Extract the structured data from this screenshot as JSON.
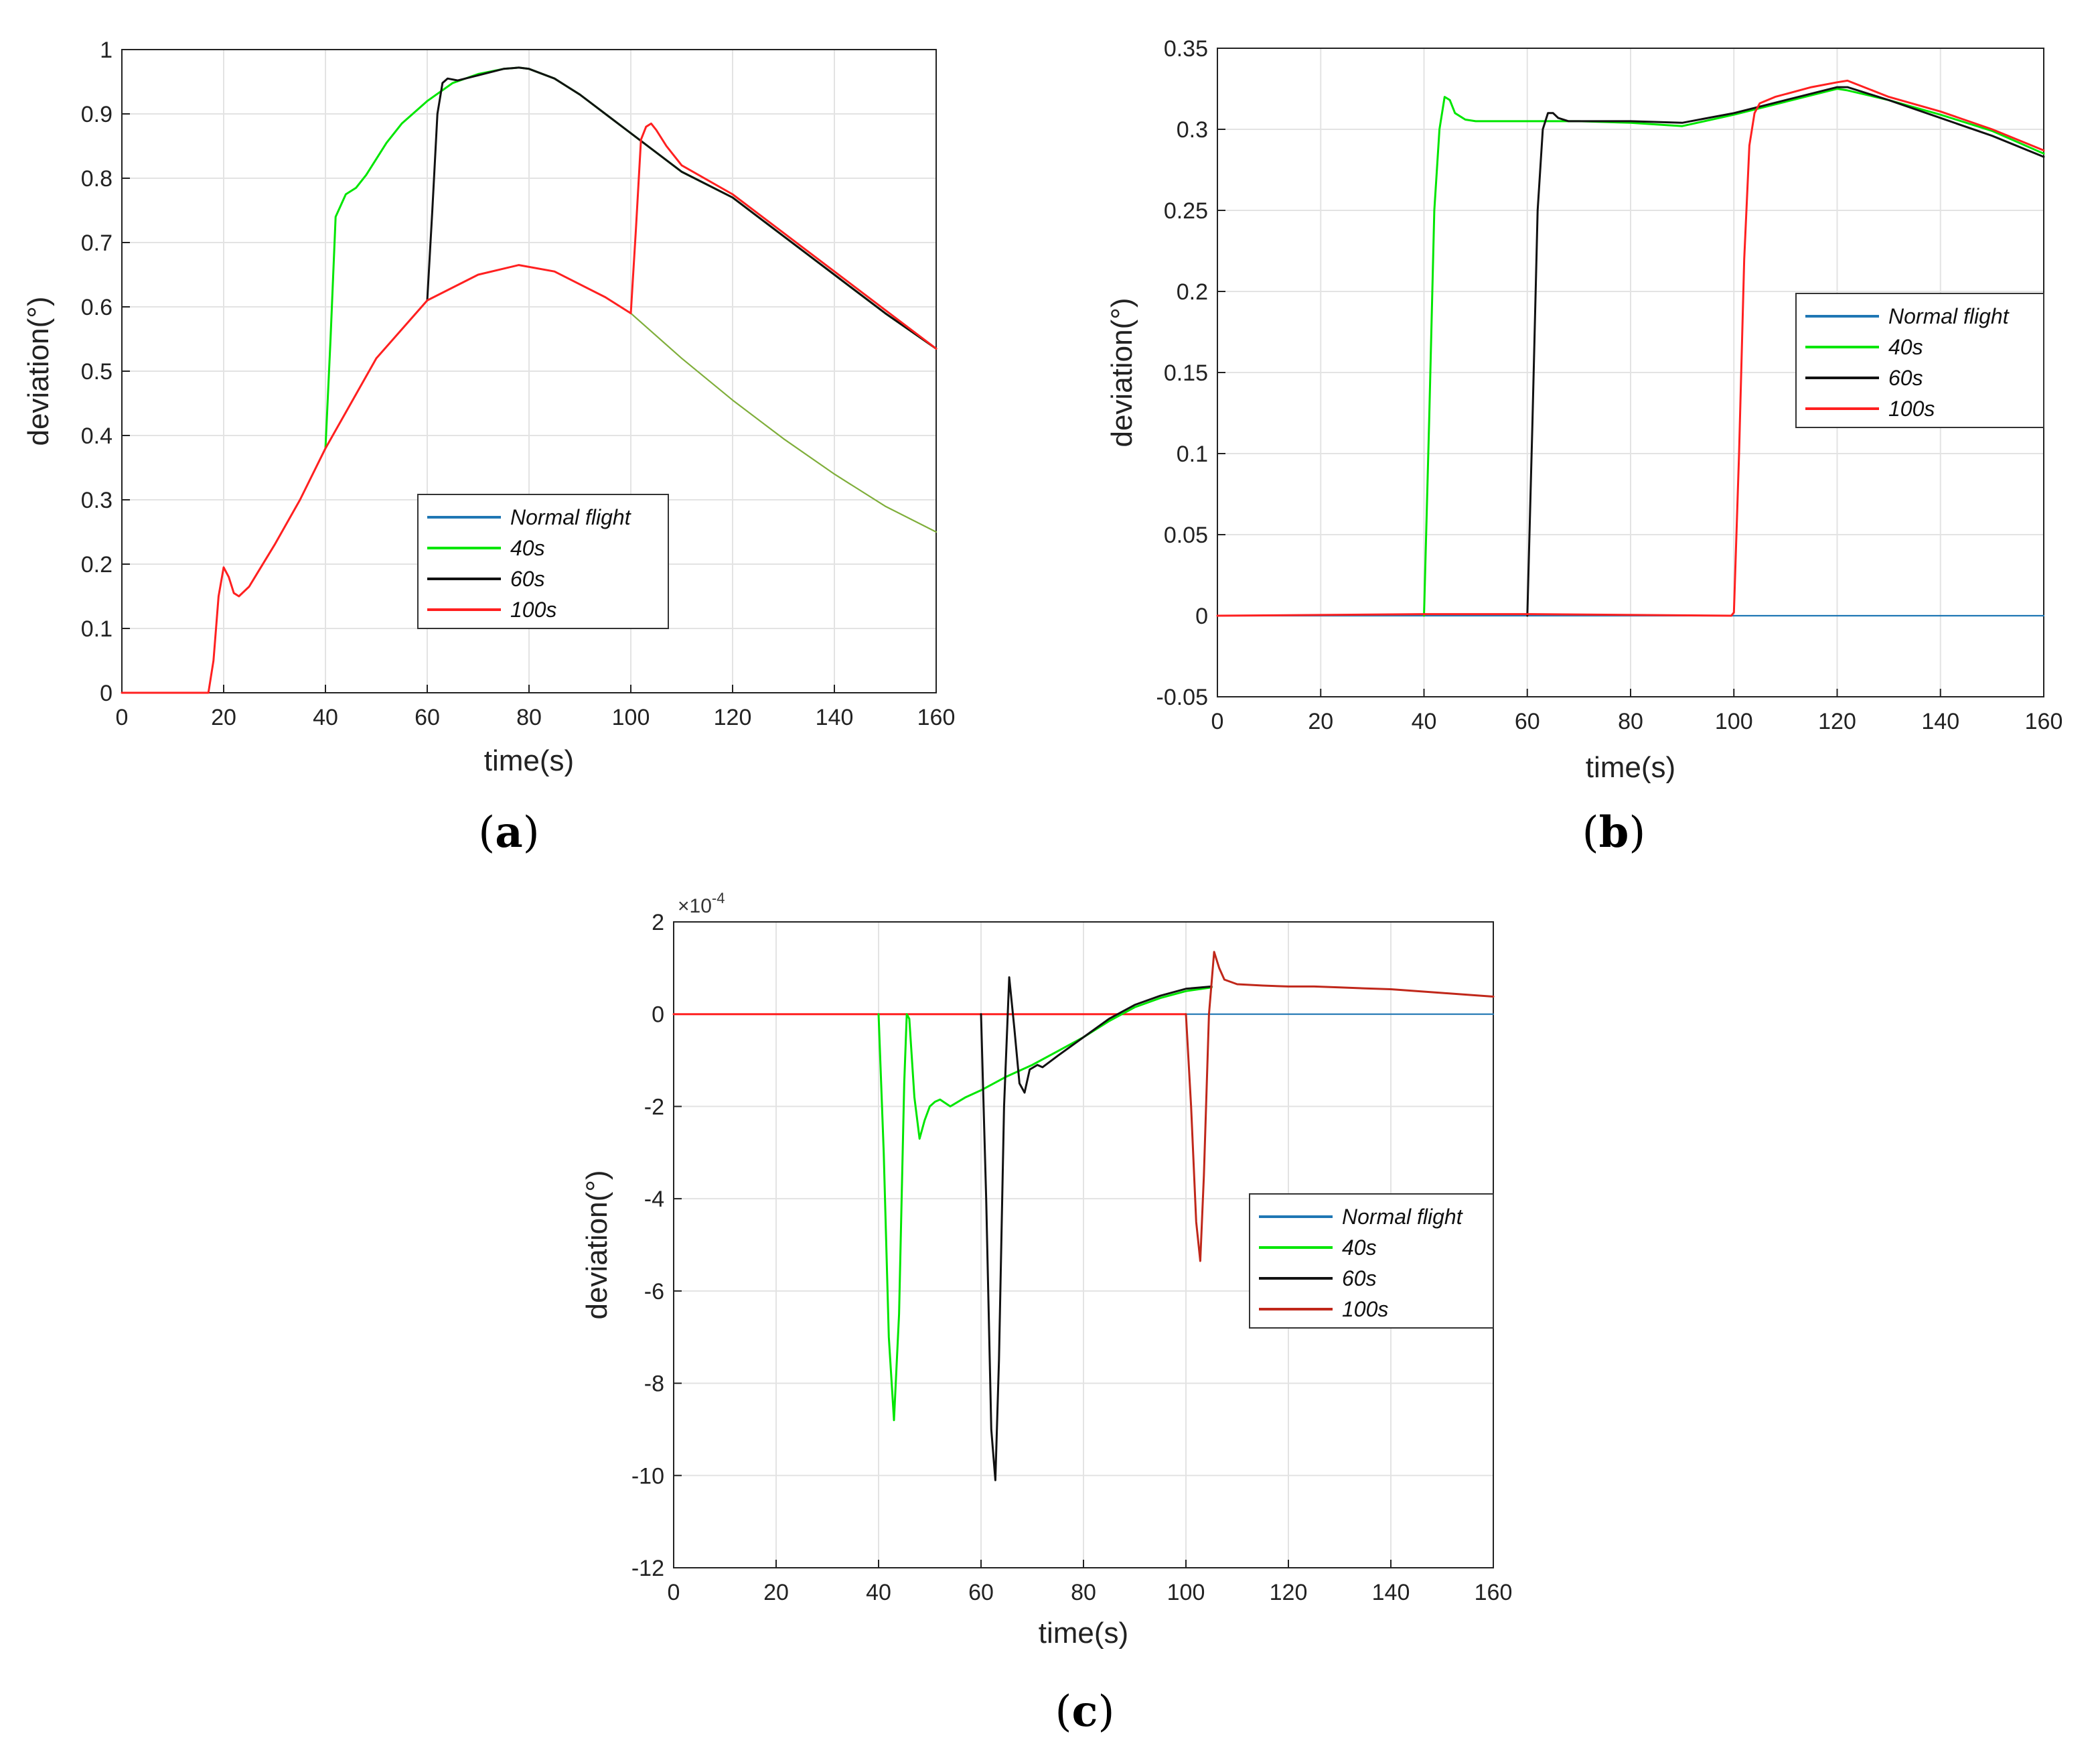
{
  "colors": {
    "normal": "#1f77b4",
    "green": "#00e600",
    "black": "#111111",
    "red": "#ff2020",
    "darkred": "#c0271a",
    "olive": "#7fae3a",
    "grid": "#e3e3e3",
    "axis": "#222222"
  },
  "chart_data": [
    {
      "type": "line",
      "panel": "a",
      "caption": {
        "open": "(",
        "letter": "a",
        "close": ")"
      },
      "xlabel": "time(s)",
      "ylabel": "deviation(°)",
      "xlim": [
        0,
        160
      ],
      "ylim": [
        0,
        1
      ],
      "xticks": [
        0,
        20,
        40,
        60,
        80,
        100,
        120,
        140,
        160
      ],
      "yticks": [
        0,
        0.1,
        0.2,
        0.3,
        0.4,
        0.5,
        0.6,
        0.7,
        0.8,
        0.9,
        1
      ],
      "ytick_labels": [
        "0",
        "0.1",
        "0.2",
        "0.3",
        "0.4",
        "0.5",
        "0.6",
        "0.7",
        "0.8",
        "0.9",
        "1"
      ],
      "exponent_label": "",
      "legend": {
        "position": "center",
        "entries": [
          {
            "label": "Normal flight",
            "color": "normal"
          },
          {
            "label": "40s",
            "color": "green"
          },
          {
            "label": "60s",
            "color": "black"
          },
          {
            "label": "100s",
            "color": "red"
          }
        ]
      },
      "series": [
        {
          "name": "Normal flight (after 100s)",
          "color": "olive",
          "width": 2.2,
          "x": [
            100,
            110,
            120,
            130,
            140,
            150,
            160
          ],
          "y": [
            0.59,
            0.52,
            0.455,
            0.395,
            0.34,
            0.29,
            0.25
          ]
        },
        {
          "name": "40s",
          "color": "green",
          "width": 3,
          "x": [
            40,
            41,
            42,
            44,
            46,
            48,
            50,
            52,
            55,
            60,
            65,
            70,
            75,
            78,
            80,
            85,
            90,
            95,
            100,
            110,
            120,
            130,
            140,
            150,
            160
          ],
          "y": [
            0.38,
            0.55,
            0.74,
            0.775,
            0.785,
            0.805,
            0.83,
            0.855,
            0.885,
            0.92,
            0.948,
            0.962,
            0.97,
            0.972,
            0.97,
            0.955,
            0.93,
            0.9,
            0.87,
            0.81,
            0.77,
            0.71,
            0.65,
            0.59,
            0.535
          ]
        },
        {
          "name": "60s",
          "color": "black",
          "width": 3,
          "x": [
            60,
            61,
            62,
            63,
            64,
            66,
            70,
            75,
            78,
            80,
            85,
            90,
            95,
            100,
            105,
            110,
            120,
            130,
            140,
            150,
            160
          ],
          "y": [
            0.61,
            0.75,
            0.9,
            0.948,
            0.955,
            0.952,
            0.96,
            0.97,
            0.972,
            0.97,
            0.955,
            0.93,
            0.9,
            0.87,
            0.84,
            0.81,
            0.77,
            0.71,
            0.65,
            0.59,
            0.535
          ]
        },
        {
          "name": "100s",
          "color": "red",
          "width": 3,
          "x": [
            0,
            17,
            18,
            19,
            20,
            21,
            22,
            23,
            25,
            30,
            35,
            40,
            50,
            60,
            70,
            78,
            85,
            95,
            100,
            101,
            102,
            103,
            104,
            105,
            107,
            110,
            120,
            130,
            140,
            150,
            160
          ],
          "y": [
            0,
            0,
            0.05,
            0.15,
            0.195,
            0.18,
            0.155,
            0.15,
            0.165,
            0.23,
            0.3,
            0.38,
            0.52,
            0.61,
            0.65,
            0.665,
            0.655,
            0.615,
            0.59,
            0.72,
            0.86,
            0.88,
            0.885,
            0.875,
            0.85,
            0.82,
            0.775,
            0.715,
            0.655,
            0.595,
            0.535
          ]
        }
      ]
    },
    {
      "type": "line",
      "panel": "b",
      "caption": {
        "open": "(",
        "letter": "b",
        "close": ")"
      },
      "xlabel": "time(s)",
      "ylabel": "deviation(°)",
      "xlim": [
        0,
        160
      ],
      "ylim": [
        -0.05,
        0.35
      ],
      "xticks": [
        0,
        20,
        40,
        60,
        80,
        100,
        120,
        140,
        160
      ],
      "yticks": [
        -0.05,
        0,
        0.05,
        0.1,
        0.15,
        0.2,
        0.25,
        0.3,
        0.35
      ],
      "ytick_labels": [
        "-0.05",
        "0",
        "0.05",
        "0.1",
        "0.15",
        "0.2",
        "0.25",
        "0.3",
        "0.35"
      ],
      "exponent_label": "",
      "legend": {
        "position": "center-right",
        "entries": [
          {
            "label": "Normal flight",
            "color": "normal"
          },
          {
            "label": "40s",
            "color": "green"
          },
          {
            "label": "60s",
            "color": "black"
          },
          {
            "label": "100s",
            "color": "red"
          }
        ]
      },
      "series": [
        {
          "name": "Normal flight",
          "color": "normal",
          "width": 2.2,
          "x": [
            0,
            160
          ],
          "y": [
            0,
            0
          ]
        },
        {
          "name": "40s",
          "color": "green",
          "width": 3,
          "x": [
            40,
            41,
            42,
            43,
            44,
            45,
            46,
            48,
            50,
            60,
            70,
            80,
            90,
            100,
            110,
            120,
            122,
            130,
            140,
            150,
            160
          ],
          "y": [
            0,
            0.12,
            0.25,
            0.3,
            0.32,
            0.318,
            0.31,
            0.306,
            0.305,
            0.305,
            0.305,
            0.304,
            0.302,
            0.309,
            0.317,
            0.325,
            0.324,
            0.318,
            0.309,
            0.299,
            0.285
          ]
        },
        {
          "name": "60s",
          "color": "black",
          "width": 3,
          "x": [
            60,
            61,
            62,
            63,
            64,
            65,
            66,
            68,
            70,
            80,
            90,
            100,
            110,
            120,
            122,
            130,
            140,
            150,
            160
          ],
          "y": [
            0,
            0.12,
            0.25,
            0.3,
            0.31,
            0.31,
            0.307,
            0.305,
            0.305,
            0.305,
            0.304,
            0.31,
            0.318,
            0.326,
            0.326,
            0.318,
            0.307,
            0.296,
            0.283
          ]
        },
        {
          "name": "100s",
          "color": "red",
          "width": 3,
          "x": [
            0,
            40,
            60,
            99.5,
            100,
            101,
            102,
            103,
            104,
            105,
            108,
            115,
            120,
            122,
            130,
            140,
            150,
            160
          ],
          "y": [
            0,
            0.001,
            0.001,
            0,
            0.002,
            0.1,
            0.22,
            0.29,
            0.31,
            0.316,
            0.32,
            0.326,
            0.329,
            0.33,
            0.32,
            0.311,
            0.3,
            0.287
          ]
        }
      ]
    },
    {
      "type": "line",
      "panel": "c",
      "caption": {
        "open": "(",
        "letter": "c",
        "close": ")"
      },
      "xlabel": "time(s)",
      "ylabel": "deviation(°)",
      "xlim": [
        0,
        160
      ],
      "ylim": [
        -12,
        2
      ],
      "xticks": [
        0,
        20,
        40,
        60,
        80,
        100,
        120,
        140,
        160
      ],
      "yticks": [
        -12,
        -10,
        -8,
        -6,
        -4,
        -2,
        0,
        2
      ],
      "ytick_labels": [
        "-12",
        "-10",
        "-8",
        "-6",
        "-4",
        "-2",
        "0",
        "2"
      ],
      "exponent_label": "×10",
      "exponent_power": "-4",
      "legend": {
        "position": "center-right",
        "entries": [
          {
            "label": "Normal flight",
            "color": "normal"
          },
          {
            "label": "40s",
            "color": "green"
          },
          {
            "label": "60s",
            "color": "black"
          },
          {
            "label": "100s",
            "color": "darkred"
          }
        ]
      },
      "series": [
        {
          "name": "Normal flight",
          "color": "normal",
          "width": 2.2,
          "x": [
            0,
            160
          ],
          "y": [
            0,
            0
          ]
        },
        {
          "name": "100s (before 100s)",
          "color": "red",
          "width": 3,
          "x": [
            0,
            100
          ],
          "y": [
            0,
            0
          ]
        },
        {
          "name": "40s",
          "color": "green",
          "width": 3,
          "x": [
            40,
            41,
            42,
            43,
            44,
            45,
            45.5,
            46,
            47,
            48,
            49,
            50,
            51,
            52,
            54,
            57,
            60,
            65,
            70,
            75,
            80,
            85,
            90,
            95,
            100,
            105
          ],
          "y": [
            0,
            -3,
            -7,
            -8.8,
            -6.5,
            -1.5,
            0,
            -0.1,
            -1.8,
            -2.7,
            -2.3,
            -2.0,
            -1.9,
            -1.85,
            -2.0,
            -1.8,
            -1.65,
            -1.35,
            -1.1,
            -0.8,
            -0.5,
            -0.15,
            0.15,
            0.35,
            0.5,
            0.58
          ]
        },
        {
          "name": "60s",
          "color": "black",
          "width": 3,
          "x": [
            60,
            61,
            62,
            62.8,
            63.5,
            64.5,
            65.5,
            66.5,
            67.5,
            68.5,
            69.5,
            71,
            72,
            75,
            80,
            85,
            90,
            95,
            100,
            105
          ],
          "y": [
            0,
            -4,
            -9,
            -10.1,
            -7.5,
            -2,
            0.8,
            -0.3,
            -1.5,
            -1.7,
            -1.2,
            -1.1,
            -1.15,
            -0.9,
            -0.5,
            -0.1,
            0.2,
            0.4,
            0.55,
            0.6
          ]
        },
        {
          "name": "100s",
          "color": "darkred",
          "width": 3,
          "x": [
            100,
            101,
            102,
            102.8,
            103.5,
            104.5,
            105.5,
            106.5,
            107.5,
            110,
            115,
            120,
            125,
            130,
            135,
            140,
            145,
            150,
            155,
            160
          ],
          "y": [
            0,
            -2,
            -4.5,
            -5.35,
            -3.5,
            0,
            1.35,
            1.0,
            0.75,
            0.65,
            0.62,
            0.6,
            0.6,
            0.58,
            0.56,
            0.54,
            0.5,
            0.46,
            0.42,
            0.38
          ]
        }
      ]
    }
  ]
}
